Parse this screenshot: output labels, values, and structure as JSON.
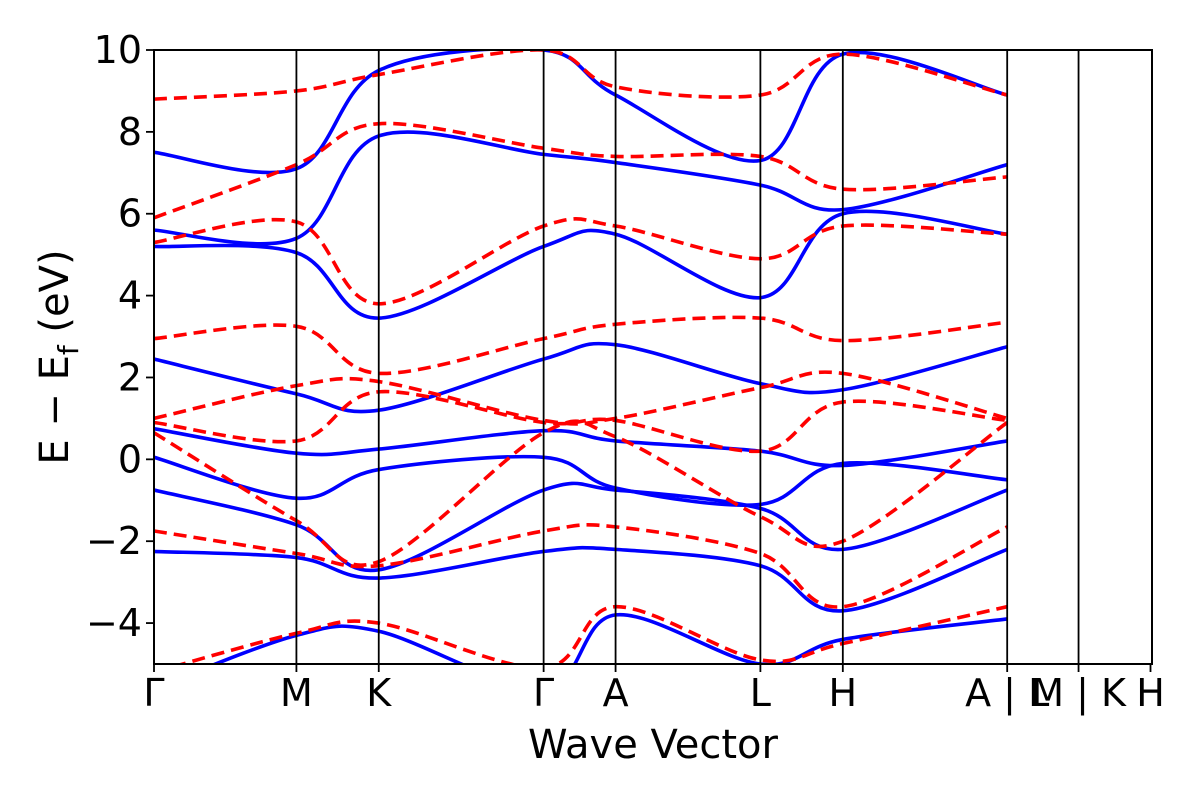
{
  "chart_data": {
    "type": "line",
    "title": "",
    "xlabel": "Wave Vector",
    "ylabel": "E − E",
    "ylabel_sub": "f",
    "ylabel_tail": " (eV)",
    "ylim": [
      -5,
      10
    ],
    "yticks": [
      -4,
      -2,
      0,
      2,
      4,
      6,
      8,
      10
    ],
    "ytick_labels": [
      "−4",
      "−2",
      "0",
      "2",
      "4",
      "6",
      "8",
      "10"
    ],
    "xlim": [
      0,
      1
    ],
    "kpath": [
      {
        "label": "Γ",
        "x": 0.0
      },
      {
        "label": "M",
        "x": 0.1427
      },
      {
        "label": "K",
        "x": 0.2252
      },
      {
        "label": "Γ",
        "x": 0.3904
      },
      {
        "label": "A",
        "x": 0.4625
      },
      {
        "label": "L",
        "x": 0.6076
      },
      {
        "label": "H",
        "x": 0.6902
      },
      {
        "label": "A | L",
        "x": 0.8549
      },
      {
        "label": "M | K",
        "x": 0.9264
      },
      {
        "label": "H",
        "x": 0.9985
      }
    ],
    "grid": false,
    "legend": "none",
    "series_styles": [
      {
        "color": "#0000ff",
        "dash": "solid"
      },
      {
        "color": "#ff0000",
        "dash": "dashed"
      }
    ],
    "series": [
      {
        "x": [
          0,
          0.1427,
          0.2252,
          0.3904,
          0.4625,
          0.6076,
          0.6902,
          0.8549
        ],
        "bands": [
          [
            -5.6,
            -4.3,
            -4.2,
            -5.6,
            -3.8,
            -5.0,
            -4.4,
            -3.9
          ],
          [
            -2.25,
            -2.4,
            -2.9,
            -2.25,
            -2.2,
            -2.6,
            -3.7,
            -2.2
          ],
          [
            -0.75,
            -1.6,
            -2.7,
            -0.75,
            -0.75,
            -1.2,
            -2.2,
            -0.75
          ],
          [
            0.05,
            -0.95,
            -0.25,
            0.05,
            -0.7,
            -1.1,
            -0.1,
            -0.5
          ],
          [
            0.75,
            0.15,
            0.25,
            0.7,
            0.45,
            0.2,
            -0.15,
            0.45
          ],
          [
            2.45,
            1.6,
            1.2,
            2.45,
            2.8,
            1.85,
            1.7,
            2.75
          ],
          [
            5.2,
            5.05,
            3.45,
            5.2,
            5.5,
            3.95,
            6.0,
            5.5
          ],
          [
            5.6,
            5.4,
            7.9,
            7.45,
            7.25,
            6.7,
            6.1,
            7.2
          ],
          [
            7.5,
            7.1,
            9.5,
            10.0,
            8.9,
            7.3,
            9.9,
            8.9
          ]
        ]
      },
      {
        "x": [
          0,
          0.1427,
          0.2252,
          0.3904,
          0.4625,
          0.6076,
          0.6902,
          0.8549
        ],
        "bands": [
          [
            -5.2,
            -4.25,
            -4.0,
            -5.1,
            -3.6,
            -4.9,
            -4.5,
            -3.6
          ],
          [
            -1.75,
            -2.3,
            -2.6,
            -1.75,
            -1.65,
            -2.3,
            -3.6,
            -1.65
          ],
          [
            0.65,
            -1.5,
            -2.5,
            0.65,
            0.55,
            -1.4,
            -2.0,
            0.9
          ],
          [
            0.9,
            0.45,
            1.65,
            0.9,
            0.95,
            0.2,
            1.4,
            0.95
          ],
          [
            1.0,
            1.8,
            1.9,
            0.95,
            1.0,
            1.75,
            2.1,
            1.0
          ],
          [
            2.95,
            3.25,
            2.1,
            2.95,
            3.3,
            3.45,
            2.9,
            3.35
          ],
          [
            5.3,
            5.8,
            3.8,
            5.7,
            5.7,
            4.9,
            5.7,
            5.5
          ],
          [
            5.9,
            7.2,
            8.2,
            7.6,
            7.4,
            7.4,
            6.6,
            6.9
          ],
          [
            8.8,
            9.0,
            9.4,
            10.0,
            9.1,
            8.9,
            9.9,
            8.9
          ]
        ]
      }
    ]
  }
}
